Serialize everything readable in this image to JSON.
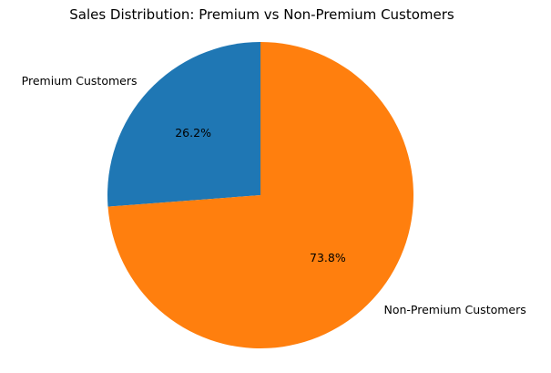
{
  "chart_data": {
    "type": "pie",
    "title": "Sales Distribution: Premium vs Non-Premium Customers",
    "slices": [
      {
        "label": "Premium Customers",
        "value": 26.2,
        "pct_label": "26.2%",
        "color": "#1f77b4"
      },
      {
        "label": "Non-Premium Customers",
        "value": 73.8,
        "pct_label": "73.8%",
        "color": "#ff7f0e"
      }
    ],
    "start_angle_deg": 90,
    "direction": "counterclockwise"
  }
}
